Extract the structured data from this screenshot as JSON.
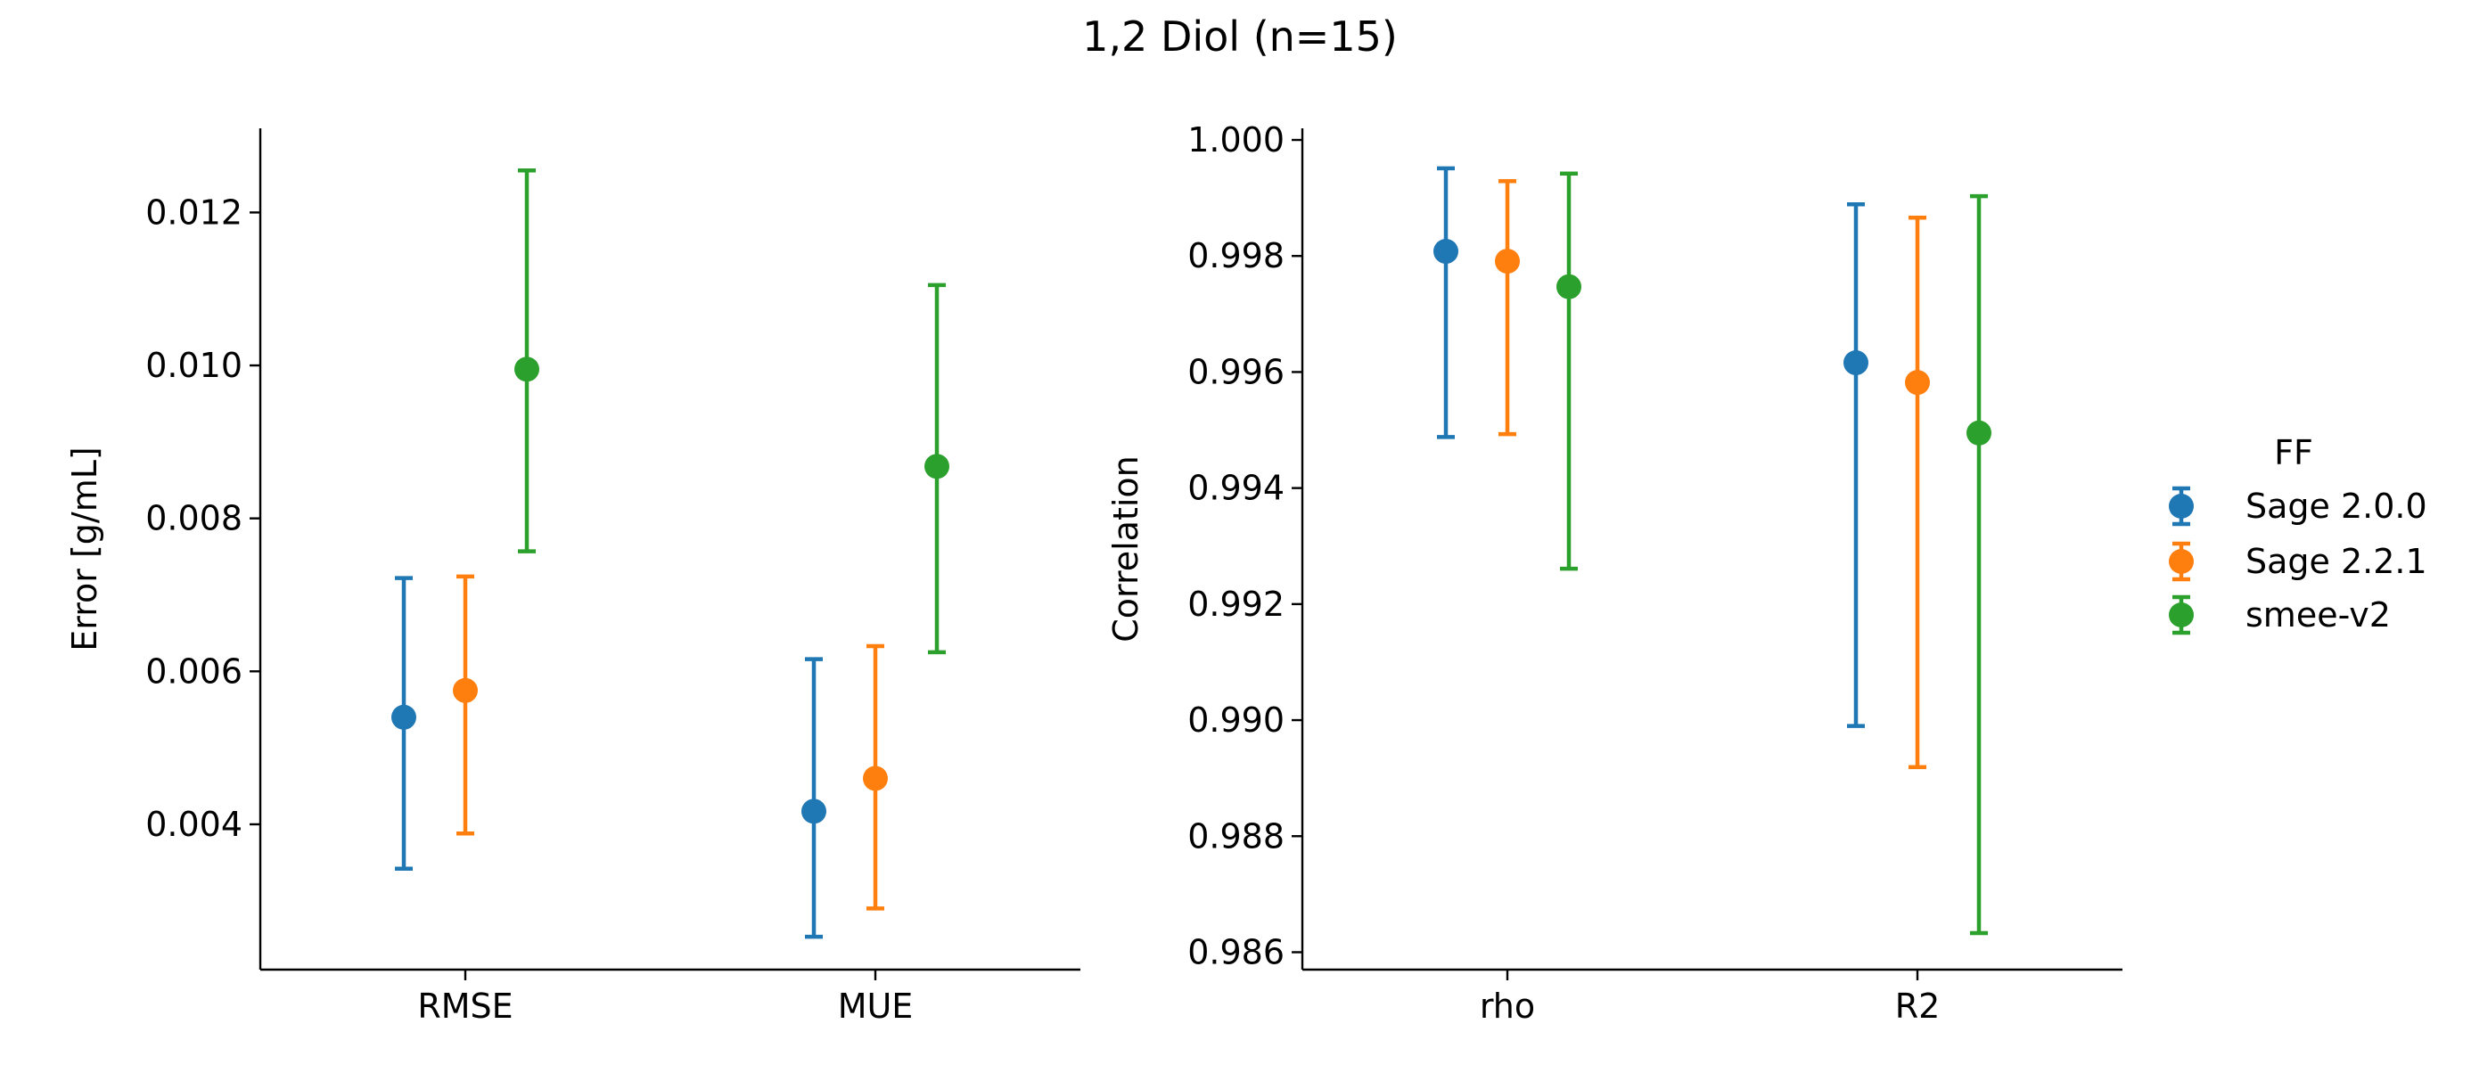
{
  "chart_data": {
    "type": "scatter",
    "subtype": "pointplot-with-error-bars",
    "title": "1,2 Diol (n=15)",
    "legend": {
      "title": "FF",
      "placement": "right",
      "entries": [
        "Sage 2.0.0",
        "Sage 2.2.1",
        "smee-v2"
      ]
    },
    "colors": {
      "Sage 2.0.0": "#1f77b4",
      "Sage 2.2.1": "#ff7f0e",
      "smee-v2": "#2ca02c"
    },
    "panels": [
      {
        "ylabel": "Error [g/mL]",
        "xlabel": "",
        "categories": [
          "RMSE",
          "MUE"
        ],
        "ylim": [
          0.0021,
          0.0131
        ],
        "yticks": [
          0.004,
          0.006,
          0.008,
          0.01,
          0.012
        ],
        "ytick_labels": [
          "0.004",
          "0.006",
          "0.008",
          "0.010",
          "0.012"
        ],
        "series": [
          {
            "name": "Sage 2.0.0",
            "values": [
              0.0054,
              0.00417
            ],
            "lower": [
              0.00342,
              0.00253
            ],
            "upper": [
              0.00722,
              0.00616
            ]
          },
          {
            "name": "Sage 2.2.1",
            "values": [
              0.00575,
              0.0046
            ],
            "lower": [
              0.00388,
              0.0029
            ],
            "upper": [
              0.00724,
              0.00633
            ]
          },
          {
            "name": "smee-v2",
            "values": [
              0.00995,
              0.00868
            ],
            "lower": [
              0.00757,
              0.00625
            ],
            "upper": [
              0.01255,
              0.01105
            ]
          }
        ]
      },
      {
        "ylabel": "Correlation",
        "xlabel": "",
        "categories": [
          "rho",
          "R2"
        ],
        "ylim": [
          0.9857,
          1.0002
        ],
        "yticks": [
          0.986,
          0.988,
          0.99,
          0.992,
          0.994,
          0.996,
          0.998,
          1.0
        ],
        "ytick_labels": [
          "0.986",
          "0.988",
          "0.990",
          "0.992",
          "0.994",
          "0.996",
          "0.998",
          "1.000"
        ],
        "series": [
          {
            "name": "Sage 2.0.0",
            "values": [
              0.99808,
              0.99616
            ],
            "lower": [
              0.99488,
              0.9899
            ],
            "upper": [
              0.99951,
              0.99889
            ]
          },
          {
            "name": "Sage 2.2.1",
            "values": [
              0.99791,
              0.99582
            ],
            "lower": [
              0.99493,
              0.98919
            ],
            "upper": [
              0.99929,
              0.99866
            ]
          },
          {
            "name": "smee-v2",
            "values": [
              0.99747,
              0.99495
            ],
            "lower": [
              0.99261,
              0.98633
            ],
            "upper": [
              0.99942,
              0.99903
            ]
          }
        ]
      }
    ]
  }
}
